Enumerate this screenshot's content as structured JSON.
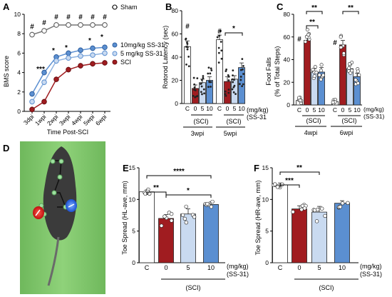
{
  "panels": {
    "a": {
      "letter": "A"
    },
    "b": {
      "letter": "B"
    },
    "c": {
      "letter": "C"
    },
    "d": {
      "letter": "D"
    },
    "e": {
      "letter": "E"
    },
    "f": {
      "letter": "F"
    }
  },
  "colors": {
    "sham": "#ffffff",
    "ss31_10": "#5b8fd1",
    "ss31_5": "#c9daf0",
    "sci": "#a01c20",
    "white_bar": "#ffffff",
    "mouse_bg": "#7cc36a",
    "mouse_body": "#3a3a3a"
  },
  "chart_data": [
    {
      "panel": "A",
      "type": "line",
      "ylabel": "BMS score",
      "xlabel": "Time Post-SCI",
      "x": [
        "3dpi",
        "1wpi",
        "2wpi",
        "3wpi",
        "4wpi",
        "5wpi",
        "6wpi"
      ],
      "ylim": [
        0,
        10
      ],
      "yticks": [
        "0",
        "2",
        "4",
        "6",
        "8",
        "10"
      ],
      "series": [
        {
          "name": "Sham",
          "values": [
            7.9,
            8.3,
            8.9,
            8.9,
            8.9,
            8.9,
            8.9
          ]
        },
        {
          "name": "10mg/kg SS-31",
          "values": [
            1.8,
            4.0,
            5.6,
            6.0,
            6.3,
            6.5,
            6.6
          ]
        },
        {
          "name": "5 mg/kg SS-31",
          "values": [
            1.0,
            3.0,
            5.2,
            5.5,
            5.7,
            5.8,
            6.0
          ]
        },
        {
          "name": "SCI",
          "values": [
            0.2,
            1.0,
            3.3,
            4.3,
            4.7,
            4.9,
            5.0
          ]
        }
      ],
      "annotations": [
        "#",
        "#",
        "#",
        "#",
        "#",
        "#",
        "#",
        "***",
        "*",
        "*",
        "*",
        "*"
      ]
    },
    {
      "panel": "B",
      "type": "bar",
      "ylabel": "Rotorod Latency (sec)",
      "ylim": [
        0,
        80
      ],
      "yticks": [
        "0",
        "20",
        "40",
        "60",
        "80"
      ],
      "categories": [
        "C",
        "0",
        "5",
        "10",
        "C",
        "0",
        "5",
        "10"
      ],
      "values": [
        49,
        13,
        18,
        20,
        55,
        19,
        21,
        31
      ],
      "groups": [
        "3wpi",
        "5wpi"
      ],
      "bracket": "(SCI)",
      "unit_label": "(mg/kg) (SS-31",
      "annotations": [
        "#",
        "#",
        "*"
      ]
    },
    {
      "panel": "C",
      "type": "bar",
      "ylabel": "Foot Falls (% of Total Steps)",
      "ylim": [
        0,
        80
      ],
      "yticks": [
        "0",
        "20",
        "40",
        "60",
        "80"
      ],
      "categories": [
        "C",
        "0",
        "5",
        "10",
        "C",
        "0",
        "5",
        "10"
      ],
      "values": [
        4,
        57,
        29,
        29,
        3,
        53,
        32,
        25
      ],
      "groups": [
        "4wpi",
        "6wpi"
      ],
      "bracket": "(SCI)",
      "unit_label": "(mg/kg) (SS-31)",
      "annotations": [
        "#",
        "**",
        "**",
        "#",
        "**"
      ]
    },
    {
      "panel": "E",
      "type": "bar",
      "ylabel": "Toe Spread (HL-ave, mm)",
      "ylim": [
        0,
        15
      ],
      "yticks": [
        "0",
        "5",
        "10",
        "15"
      ],
      "categories": [
        "C",
        "0",
        "5",
        "10"
      ],
      "values": [
        11.2,
        7.0,
        7.7,
        9.2
      ],
      "bracket": "(SCI)",
      "unit_label": "(mg/kg) (SS-31)",
      "annotations": [
        "**",
        "****",
        "*"
      ]
    },
    {
      "panel": "F",
      "type": "bar",
      "ylabel": "Toe Spread (HR-ave, mm)",
      "ylim": [
        0,
        15
      ],
      "yticks": [
        "0",
        "5",
        "10",
        "15"
      ],
      "categories": [
        "C",
        "0",
        "5",
        "10"
      ],
      "values": [
        12.3,
        8.5,
        8.0,
        9.4
      ],
      "bracket": "(SCI)",
      "unit_label": "(mg/kg) (SS-31)",
      "annotations": [
        "**",
        "***"
      ]
    }
  ],
  "text": {
    "a_xticks": [
      "3dpi",
      "1wpi",
      "2wpi",
      "3wpi",
      "4wpi",
      "5wpi",
      "6wpi"
    ],
    "a_yticks": [
      "0",
      "2",
      "4",
      "6",
      "8",
      "10"
    ],
    "legend_sham": "Sham",
    "legend_10": "10mg/kg SS-31",
    "legend_5": "5 mg/kg SS-31",
    "legend_sci": "SCI",
    "a_ylabel": "BMS score",
    "a_xlabel": "Time Post-SCI",
    "hash": "#",
    "s1": "*",
    "s2": "**",
    "s3": "***",
    "s4": "****",
    "b_ylabel": "Rotorod Latency (sec)",
    "b_yticks": [
      "0",
      "20",
      "40",
      "60",
      "80"
    ],
    "b_cats": [
      "C",
      "0",
      "5",
      "10",
      "C",
      "0",
      "5",
      "10"
    ],
    "b_unit1": "(mg/kg)",
    "b_unit2": "(SS-31",
    "sci": "(SCI)",
    "b_g1": "3wpi",
    "b_g2": "5wpi",
    "c_ylabel1": "Foot Falls",
    "c_ylabel2": "(% of Total Steps)",
    "c_unit1": "(mg/kg)",
    "c_unit2": "(SS-31)",
    "c_g1": "4wpi",
    "c_g2": "6wpi",
    "e_ylabel": "Toe Spread (HL-ave, mm)",
    "f_ylabel": "Toe Spread (HR-ave, mm)",
    "ef_yticks": [
      "0",
      "5",
      "10",
      "15"
    ],
    "ef_cats": [
      "C",
      "0",
      "5",
      "10"
    ],
    "ef_unit1": "(mg/kg)",
    "ef_unit2": "(SS-31)"
  }
}
